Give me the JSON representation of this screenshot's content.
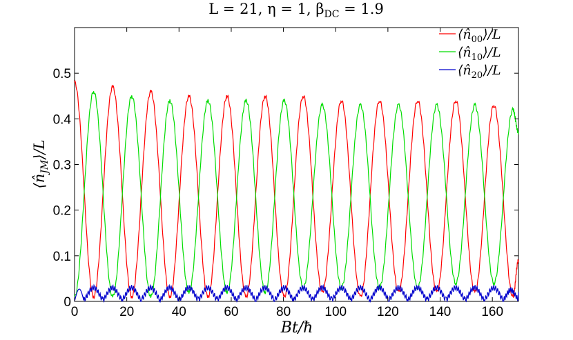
{
  "chart_data": {
    "type": "line",
    "title": "L = 21, η = 1, β",
    "title_sub": "DC",
    "title_tail": " = 1.9",
    "xlabel": "Bt/ħ",
    "ylabel_main": "⟨n̂",
    "ylabel_sub": "JM",
    "ylabel_tail": "⟩/L",
    "xlim": [
      0,
      170
    ],
    "ylim": [
      0,
      0.6
    ],
    "xticks": [
      0,
      20,
      40,
      60,
      80,
      100,
      120,
      140,
      160
    ],
    "xtick_labels": [
      "0",
      "20",
      "40",
      "60",
      "80",
      "100",
      "120",
      "140",
      "160"
    ],
    "yticks": [
      0,
      0.1,
      0.2,
      0.3,
      0.4,
      0.5
    ],
    "ytick_labels": [
      "0",
      "0.1",
      "0.2",
      "0.3",
      "0.4",
      "0.5"
    ],
    "grid": false,
    "legend_position": "top-right",
    "period": 7.3,
    "series": [
      {
        "name": "⟨n̂00⟩/L",
        "legend_main": "⟨n̂",
        "legend_sub": "00",
        "legend_tail": "⟩/L",
        "color": "#ff0000",
        "x": [
          0,
          7.3,
          14.6,
          21.9,
          29.2,
          36.5,
          43.8,
          51.1,
          58.4,
          65.7,
          73.0,
          80.3,
          87.6,
          94.9,
          102.2,
          109.5,
          116.8,
          124.1,
          131.4,
          138.7,
          146.0,
          153.3,
          160.6,
          167.9,
          170
        ],
        "y": [
          0.48,
          0.01,
          0.47,
          0.01,
          0.46,
          0.01,
          0.45,
          0.01,
          0.45,
          0.01,
          0.45,
          0.01,
          0.45,
          0.02,
          0.44,
          0.01,
          0.44,
          0.02,
          0.44,
          0.02,
          0.44,
          0.02,
          0.43,
          0.01,
          0.09
        ]
      },
      {
        "name": "⟨n̂10⟩/L",
        "legend_main": "⟨n̂",
        "legend_sub": "10",
        "legend_tail": "⟩/L",
        "color": "#00dd00",
        "x": [
          0,
          7.3,
          14.6,
          21.9,
          29.2,
          36.5,
          43.8,
          51.1,
          58.4,
          65.7,
          73.0,
          80.3,
          87.6,
          94.9,
          102.2,
          109.5,
          116.8,
          124.1,
          131.4,
          138.7,
          146.0,
          153.3,
          160.6,
          167.9,
          170
        ],
        "y": [
          0.01,
          0.46,
          0.01,
          0.45,
          0.01,
          0.44,
          0.02,
          0.44,
          0.02,
          0.44,
          0.02,
          0.44,
          0.03,
          0.43,
          0.03,
          0.43,
          0.03,
          0.43,
          0.03,
          0.43,
          0.04,
          0.43,
          0.04,
          0.42,
          0.37
        ]
      },
      {
        "name": "⟨n̂20⟩/L",
        "legend_main": "⟨n̂",
        "legend_sub": "20",
        "legend_tail": "⟩/L",
        "color": "#0000cc",
        "x": [
          0,
          3.6,
          10.9,
          18.2,
          25.5,
          32.8,
          40.1,
          47.4,
          54.7,
          62.0,
          69.3,
          76.6,
          83.9,
          91.2,
          98.5,
          105.8,
          113.1,
          120.4,
          127.7,
          135.0,
          142.3,
          149.6,
          156.9,
          164.2,
          170
        ],
        "y": [
          0.0,
          0.03,
          0.03,
          0.03,
          0.03,
          0.03,
          0.03,
          0.03,
          0.03,
          0.03,
          0.03,
          0.03,
          0.03,
          0.03,
          0.03,
          0.03,
          0.03,
          0.03,
          0.03,
          0.03,
          0.03,
          0.03,
          0.03,
          0.03,
          0.02
        ]
      }
    ]
  }
}
